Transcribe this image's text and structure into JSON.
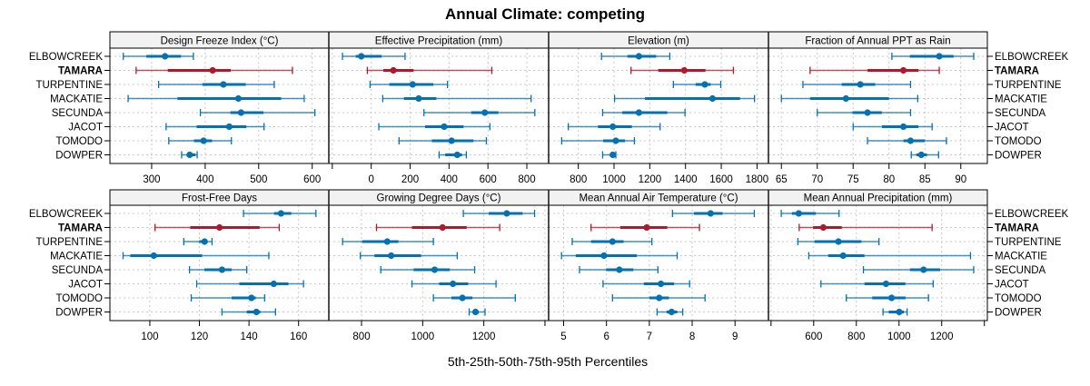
{
  "chart_data": {
    "type": "interval-dotplot",
    "title": "Annual Climate: competing",
    "xlabel": "5th-25th-50th-75th-95th Percentiles",
    "categories": [
      "ELBOWCREEK",
      "TAMARA",
      "TURPENTINE",
      "MACKATIE",
      "SECUNDA",
      "JACOT",
      "TOMODO",
      "DOWPER"
    ],
    "highlight": "TAMARA",
    "colors": {
      "default": "#0571B0",
      "highlight": "#B2182B",
      "strip_bg": "#F2F2F2",
      "grid": "#C8C8C8",
      "frame": "#000000"
    },
    "grid": true,
    "panels": [
      {
        "title": "Design Freeze Index (°C)",
        "xlim": [
          222,
          631
        ],
        "ticks": [
          {
            "v": 300,
            "label": "300"
          },
          {
            "v": 400,
            "label": "400"
          },
          {
            "v": 500,
            "label": "500"
          },
          {
            "v": 600,
            "label": "600"
          }
        ],
        "series": [
          [
            247,
            290,
            325,
            355,
            378
          ],
          [
            271,
            330,
            414,
            448,
            563
          ],
          [
            313,
            395,
            434,
            476,
            529
          ],
          [
            256,
            348,
            462,
            542,
            585
          ],
          [
            391,
            447,
            467,
            509,
            605
          ],
          [
            327,
            384,
            445,
            477,
            510
          ],
          [
            332,
            379,
            397,
            413,
            449
          ],
          [
            356,
            368,
            371,
            382,
            385
          ]
        ]
      },
      {
        "title": "Effective Precipitation (mm)",
        "xlim": [
          -218,
          912
        ],
        "ticks": [
          {
            "v": -200,
            "label": ""
          },
          {
            "v": 0,
            "label": "0"
          },
          {
            "v": 200,
            "label": "200"
          },
          {
            "v": 400,
            "label": "400"
          },
          {
            "v": 600,
            "label": "600"
          },
          {
            "v": 800,
            "label": "800"
          }
        ],
        "series": [
          [
            -148,
            -80,
            -51,
            54,
            174
          ],
          [
            -20,
            62,
            114,
            218,
            620
          ],
          [
            -6,
            93,
            213,
            319,
            392
          ],
          [
            59,
            168,
            244,
            335,
            822
          ],
          [
            271,
            514,
            584,
            654,
            841
          ],
          [
            39,
            277,
            375,
            475,
            610
          ],
          [
            143,
            311,
            413,
            526,
            592
          ],
          [
            349,
            380,
            442,
            467,
            489
          ]
        ]
      },
      {
        "title": "Elevation (m)",
        "xlim": [
          634,
          1864
        ],
        "ticks": [
          {
            "v": 800,
            "label": "800"
          },
          {
            "v": 1000,
            "label": "1000"
          },
          {
            "v": 1200,
            "label": "1200"
          },
          {
            "v": 1400,
            "label": "1400"
          },
          {
            "v": 1600,
            "label": "1600"
          },
          {
            "v": 1800,
            "label": "1800"
          }
        ],
        "series": [
          [
            930,
            1075,
            1139,
            1236,
            1312
          ],
          [
            1095,
            1247,
            1393,
            1512,
            1668
          ],
          [
            1332,
            1456,
            1508,
            1541,
            1597
          ],
          [
            1003,
            1173,
            1551,
            1705,
            1786
          ],
          [
            936,
            1046,
            1139,
            1298,
            1397
          ],
          [
            744,
            910,
            993,
            1100,
            1258
          ],
          [
            707,
            939,
            1010,
            1061,
            1114
          ],
          [
            936,
            981,
            993,
            1003,
            1010
          ]
        ]
      },
      {
        "title": "Fraction of Annual PPT as Rain",
        "xlim": [
          63.2,
          93.7
        ],
        "ticks": [
          {
            "v": 65,
            "label": "65"
          },
          {
            "v": 70,
            "label": "70"
          },
          {
            "v": 75,
            "label": "75"
          },
          {
            "v": 80,
            "label": "80"
          },
          {
            "v": 85,
            "label": "85"
          },
          {
            "v": 90,
            "label": "90"
          }
        ],
        "series": [
          [
            80.4,
            82.9,
            87,
            89,
            91.8
          ],
          [
            69,
            77,
            82,
            84.1,
            87
          ],
          [
            68,
            73.4,
            76,
            78.1,
            83
          ],
          [
            65,
            69,
            74,
            80,
            84
          ],
          [
            70,
            74.9,
            77,
            79,
            83
          ],
          [
            75,
            79,
            82,
            84.1,
            86
          ],
          [
            77,
            82,
            83,
            85,
            88
          ],
          [
            83.1,
            83.8,
            84.5,
            85.3,
            86.9
          ]
        ]
      },
      {
        "title": "Frost-Free Days",
        "xlim": [
          83.9,
          172.2
        ],
        "ticks": [
          {
            "v": 100,
            "label": "100"
          },
          {
            "v": 120,
            "label": "120"
          },
          {
            "v": 140,
            "label": "140"
          },
          {
            "v": 160,
            "label": "160"
          }
        ],
        "series": [
          [
            137.8,
            150.1,
            152.9,
            157.1,
            167
          ],
          [
            102.1,
            116.3,
            128.1,
            144.3,
            152.2
          ],
          [
            113.7,
            119.9,
            122.1,
            123.2,
            125.1
          ],
          [
            89.2,
            92.1,
            101.6,
            121.1,
            148
          ],
          [
            116,
            122,
            129.1,
            133,
            139.1
          ],
          [
            118.9,
            136.1,
            150,
            155.9,
            162
          ],
          [
            116.7,
            133,
            141,
            142.8,
            146.3
          ],
          [
            129.1,
            139.1,
            143,
            144.6,
            150.7
          ]
        ]
      },
      {
        "title": "Growing Degree Days (°C)",
        "xlim": [
          693,
          1412
        ],
        "ticks": [
          {
            "v": 800,
            "label": "800"
          },
          {
            "v": 1000,
            "label": "1000"
          },
          {
            "v": 1200,
            "label": "1200"
          },
          {
            "v": 1400,
            "label": ""
          }
        ],
        "series": [
          [
            1133,
            1216,
            1275,
            1327,
            1366
          ],
          [
            849,
            965,
            1065,
            1144,
            1252
          ],
          [
            738,
            802,
            884,
            921,
            1035
          ],
          [
            796,
            842,
            897,
            995,
            1113
          ],
          [
            863,
            970,
            1039,
            1089,
            1170
          ],
          [
            965,
            1054,
            1099,
            1149,
            1240
          ],
          [
            1035,
            1094,
            1130,
            1163,
            1303
          ],
          [
            1152,
            1163,
            1173,
            1183,
            1204
          ]
        ]
      },
      {
        "title": "Mean Annual Air Temperature (°C)",
        "xlim": [
          4.65,
          9.78
        ],
        "ticks": [
          {
            "v": 5,
            "label": "5"
          },
          {
            "v": 6,
            "label": "6"
          },
          {
            "v": 7,
            "label": "7"
          },
          {
            "v": 8,
            "label": "8"
          },
          {
            "v": 9,
            "label": "9"
          }
        ],
        "series": [
          [
            7.54,
            8.04,
            8.43,
            8.71,
            9.45
          ],
          [
            5.64,
            6.32,
            6.94,
            7.42,
            8.17
          ],
          [
            5.2,
            5.64,
            6.14,
            6.4,
            7.06
          ],
          [
            4.95,
            5.28,
            5.94,
            6.71,
            7.65
          ],
          [
            5.37,
            5.99,
            6.3,
            6.63,
            7.2
          ],
          [
            5.92,
            6.87,
            7.27,
            7.58,
            7.94
          ],
          [
            6.14,
            7.0,
            7.23,
            7.46,
            8.3
          ],
          [
            7.18,
            7.4,
            7.52,
            7.65,
            7.78
          ]
        ]
      },
      {
        "title": "Mean Annual Precipitation (mm)",
        "xlim": [
          388,
          1414
        ],
        "ticks": [
          {
            "v": 400,
            "label": ""
          },
          {
            "v": 600,
            "label": "600"
          },
          {
            "v": 800,
            "label": "800"
          },
          {
            "v": 1000,
            "label": "1000"
          },
          {
            "v": 1200,
            "label": "1200"
          },
          {
            "v": 1400,
            "label": ""
          }
        ],
        "series": [
          [
            448,
            498,
            530,
            611,
            719
          ],
          [
            532,
            597,
            645,
            732,
            1155
          ],
          [
            526,
            604,
            716,
            824,
            906
          ],
          [
            577,
            668,
            738,
            838,
            1335
          ],
          [
            833,
            1051,
            1115,
            1193,
            1350
          ],
          [
            634,
            838,
            939,
            1030,
            1160
          ],
          [
            753,
            874,
            965,
            1031,
            1138
          ],
          [
            925,
            952,
            1001,
            1023,
            1038
          ]
        ]
      }
    ]
  }
}
